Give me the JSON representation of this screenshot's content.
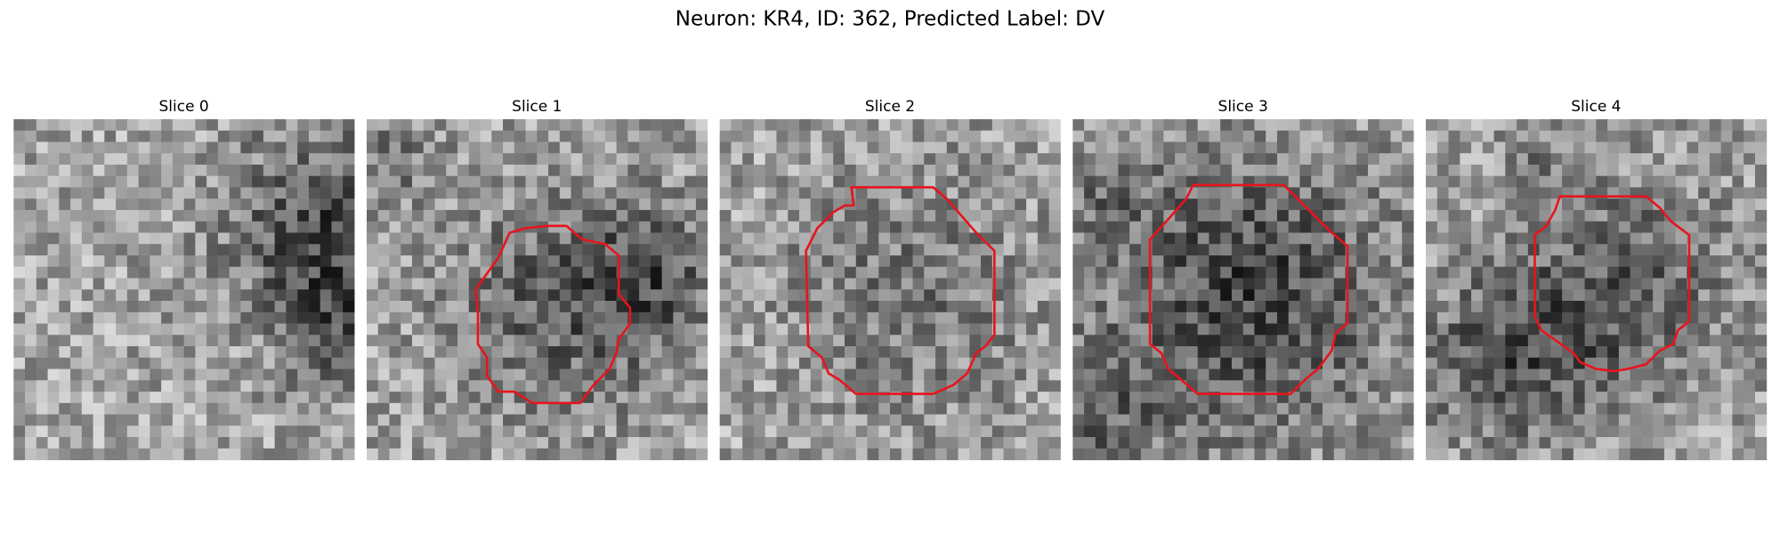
{
  "title": "Neuron: KR4, ID: 362, Predicted Label: DV",
  "panels": [
    {
      "title": "Slice 0"
    },
    {
      "title": "Slice 1"
    },
    {
      "title": "Slice 2"
    },
    {
      "title": "Slice 3"
    },
    {
      "title": "Slice 4"
    }
  ]
}
